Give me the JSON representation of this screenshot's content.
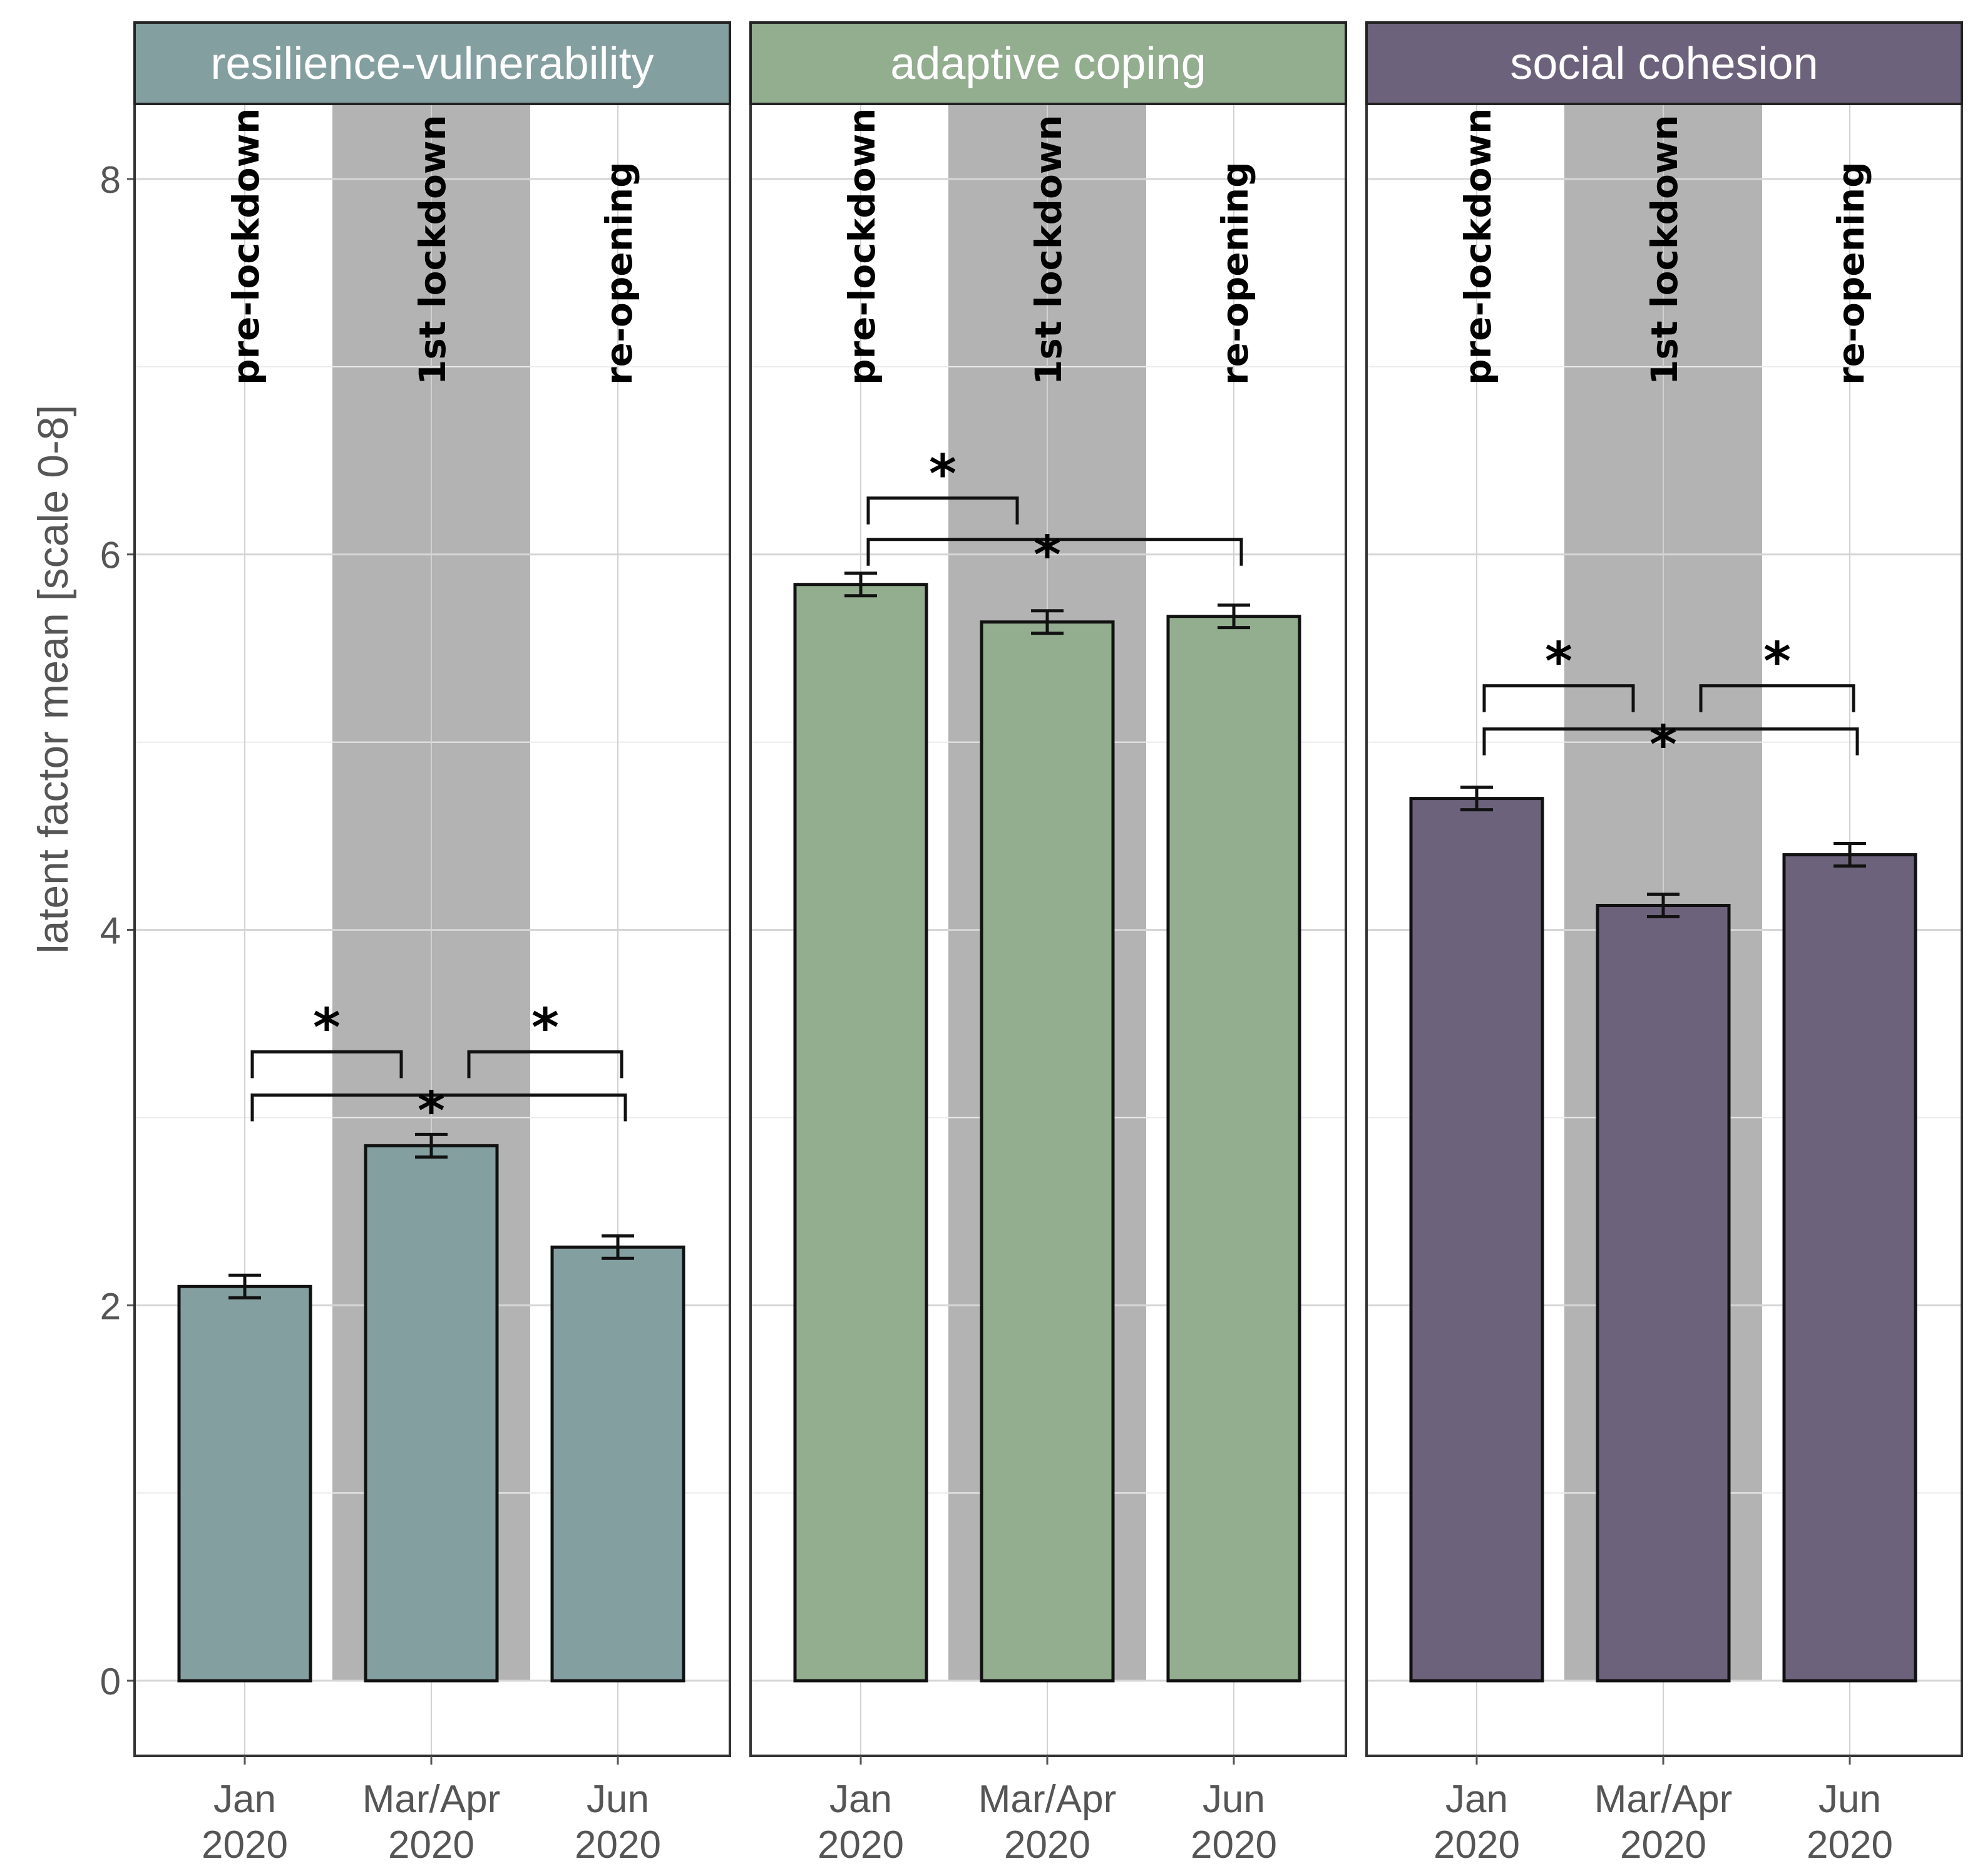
{
  "chart_data": {
    "type": "bar",
    "ylabel": "latent factor mean [scale 0-8]",
    "ylim": [
      -0.4,
      8.4
    ],
    "yticks": [
      0,
      2,
      4,
      6,
      8
    ],
    "categories": [
      {
        "line1": "Jan",
        "line2": "2020"
      },
      {
        "line1": "Mar/Apr",
        "line2": "2020"
      },
      {
        "line1": "Jun",
        "line2": "2020"
      }
    ],
    "phase_labels": [
      "pre-lockdown",
      "1st lockdown",
      "re-opening"
    ],
    "shaded_phase_index": 1,
    "shade_color": "#b3b3b3",
    "grid": true,
    "panels": [
      {
        "title": "resilience-vulnerability",
        "strip_color": "#849fa0",
        "bar_color": "#849fa0",
        "values": [
          2.1,
          2.85,
          2.31
        ],
        "errors": [
          0.06,
          0.06,
          0.06
        ],
        "significance": [
          {
            "from": 0,
            "to": 1,
            "label": "*",
            "y": 3.35
          },
          {
            "from": 1,
            "to": 2,
            "label": "*",
            "y": 3.35
          },
          {
            "from": 0,
            "to": 2,
            "label": "*",
            "y": 3.12
          }
        ]
      },
      {
        "title": "adaptive coping",
        "strip_color": "#93ad8f",
        "bar_color": "#93ad8f",
        "values": [
          5.84,
          5.64,
          5.67
        ],
        "errors": [
          0.06,
          0.06,
          0.06
        ],
        "significance": [
          {
            "from": 0,
            "to": 1,
            "label": "*",
            "y": 6.3
          },
          {
            "from": 0,
            "to": 2,
            "label": "*",
            "y": 6.08
          }
        ]
      },
      {
        "title": "social cohesion",
        "strip_color": "#6d627b",
        "bar_color": "#6d627b",
        "values": [
          4.7,
          4.13,
          4.4
        ],
        "errors": [
          0.06,
          0.06,
          0.06
        ],
        "significance": [
          {
            "from": 0,
            "to": 1,
            "label": "*",
            "y": 5.3
          },
          {
            "from": 1,
            "to": 2,
            "label": "*",
            "y": 5.3
          },
          {
            "from": 0,
            "to": 2,
            "label": "*",
            "y": 5.07
          }
        ]
      }
    ]
  }
}
